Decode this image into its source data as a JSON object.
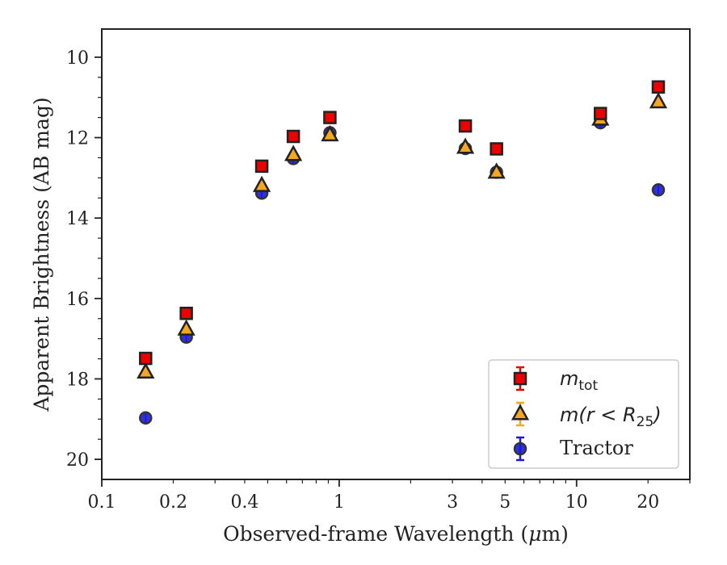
{
  "chart_data": {
    "type": "scatter",
    "xlabel_pre": "Observed-frame Wavelength (",
    "xlabel_mu": "μ",
    "xlabel_post": "m)",
    "ylabel": "Apparent Brightness (AB mag)",
    "x_scale": "log",
    "xlim": [
      0.1,
      30
    ],
    "ylim": [
      20.5,
      9.3
    ],
    "y_inverted": true,
    "grid": false,
    "legend_position": "bottom-right",
    "x_ticks": [
      0.1,
      0.2,
      0.4,
      1,
      3,
      5,
      10,
      20
    ],
    "x_tick_labels": [
      "0.1",
      "0.2",
      "0.4",
      "1",
      "3",
      "5",
      "10",
      "20"
    ],
    "y_ticks": [
      10,
      12,
      14,
      16,
      18,
      20
    ],
    "y_tick_labels": [
      "10",
      "12",
      "14",
      "16",
      "18",
      "20"
    ],
    "series": [
      {
        "key": "tractor",
        "marker": "circle",
        "color": "#1a1adb",
        "x": [
          0.153,
          0.227,
          0.472,
          0.641,
          0.914,
          3.4,
          4.6,
          12.6,
          22.1
        ],
        "y": [
          18.97,
          16.96,
          13.38,
          12.52,
          11.88,
          12.27,
          12.86,
          11.63,
          13.3
        ]
      },
      {
        "key": "m_r25",
        "marker": "triangle",
        "color": "#f5a623",
        "x": [
          0.153,
          0.227,
          0.472,
          0.641,
          0.914,
          3.4,
          4.6,
          12.6,
          22.1
        ],
        "y": [
          17.84,
          16.77,
          13.2,
          12.43,
          11.94,
          12.25,
          12.87,
          11.55,
          11.12
        ]
      },
      {
        "key": "m_tot",
        "marker": "square",
        "color": "#ee0000",
        "x": [
          0.153,
          0.227,
          0.472,
          0.641,
          0.914,
          3.4,
          4.6,
          12.6,
          22.1
        ],
        "y": [
          17.49,
          16.37,
          12.71,
          11.97,
          11.5,
          11.71,
          12.28,
          11.4,
          10.74
        ]
      }
    ],
    "legend": [
      {
        "key": "m_tot",
        "base": "m",
        "sub": "tot",
        "text": ""
      },
      {
        "key": "m_r25",
        "base": "m",
        "text": "(r < R",
        "sub": "25",
        "suffix": ")"
      },
      {
        "key": "tractor",
        "text": "Tractor"
      }
    ]
  }
}
